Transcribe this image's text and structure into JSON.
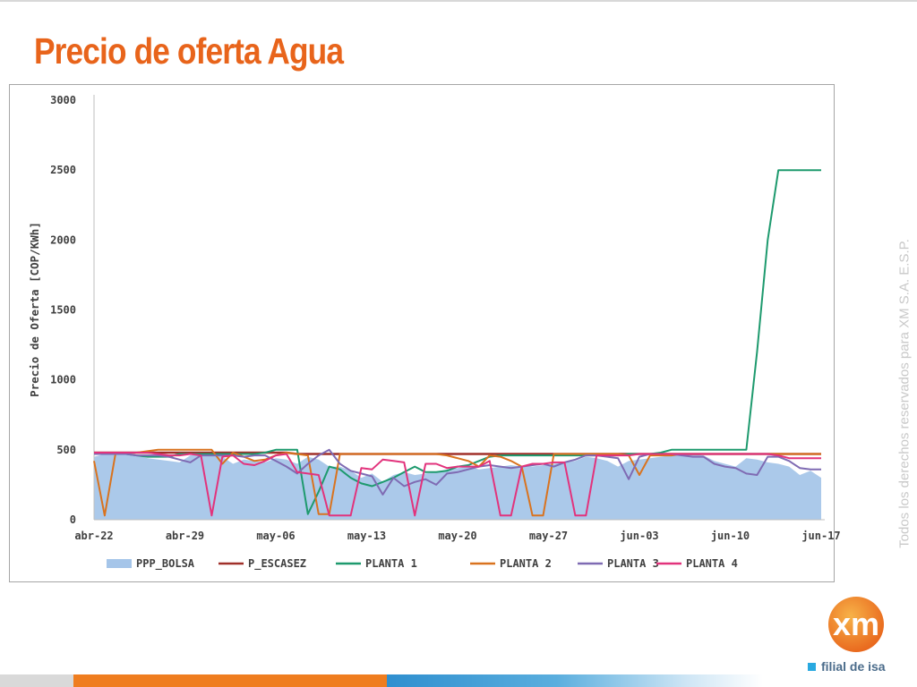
{
  "slide": {
    "title": "Precio de oferta Agua",
    "side_text": "Todos los derechos reservados para XM S.A. E.S.P.",
    "logo_text": "xm",
    "filial_text": "filial de isa"
  },
  "colors": {
    "title": "#e8641b",
    "PPP_BOLSA": "#8fb7e3",
    "P_ESCASEZ": "#a0302a",
    "PLANTA 1": "#1e9a6e",
    "PLANTA 2": "#d9731f",
    "PLANTA 3": "#7f6bb3",
    "PLANTA 4": "#e2337c"
  },
  "chart_data": {
    "type": "line",
    "title": "",
    "xlabel": "",
    "ylabel": "Precio de Oferta [COP/KWh]",
    "ylim": [
      0,
      3000
    ],
    "yticks": [
      0,
      500,
      1000,
      1500,
      2000,
      2500,
      3000
    ],
    "x_tick_labels": [
      "abr-22",
      "abr-29",
      "may-06",
      "may-13",
      "may-20",
      "may-27",
      "jun-03",
      "jun-10",
      "jun-17"
    ],
    "grid": false,
    "legend_position": "bottom",
    "series": [
      {
        "name": "PPP_BOLSA",
        "type": "area",
        "values": [
          450,
          470,
          480,
          470,
          460,
          440,
          430,
          420,
          410,
          460,
          470,
          480,
          450,
          400,
          430,
          420,
          410,
          440,
          430,
          400,
          450,
          430,
          380,
          380,
          350,
          300,
          330,
          270,
          320,
          340,
          320,
          330,
          340,
          360,
          370,
          380,
          360,
          370,
          380,
          390,
          380,
          380,
          390,
          400,
          410,
          420,
          450,
          440,
          420,
          380,
          420,
          430,
          440,
          450,
          460,
          470,
          470,
          460,
          420,
          400,
          380,
          440,
          430,
          410,
          400,
          380,
          320,
          350,
          300
        ]
      },
      {
        "name": "P_ESCASEZ",
        "values": [
          480,
          480,
          480,
          480,
          480,
          480,
          480,
          480,
          480,
          480,
          480,
          480,
          480,
          480,
          480,
          480,
          480,
          480,
          480,
          470,
          470,
          470,
          470,
          470,
          470,
          470,
          470,
          470,
          470,
          470,
          470,
          470,
          470,
          470,
          470,
          470,
          470,
          470,
          470,
          470,
          470,
          470,
          470,
          470,
          470,
          470,
          470,
          470,
          470,
          470,
          470,
          470,
          470,
          470,
          470,
          470,
          470,
          470,
          470,
          470,
          470,
          470,
          470,
          470,
          470,
          470,
          470,
          470,
          470
        ]
      },
      {
        "name": "PLANTA 1",
        "values": [
          470,
          470,
          470,
          470,
          460,
          450,
          450,
          450,
          470,
          470,
          470,
          470,
          470,
          470,
          470,
          470,
          480,
          500,
          500,
          500,
          40,
          200,
          380,
          360,
          300,
          260,
          240,
          270,
          300,
          340,
          380,
          340,
          340,
          350,
          380,
          390,
          420,
          450,
          460,
          460,
          460,
          460,
          460,
          460,
          460,
          460,
          460,
          460,
          460,
          460,
          470,
          470,
          470,
          480,
          500,
          500,
          500,
          500,
          500,
          500,
          500,
          500,
          1200,
          2000,
          2500,
          2500,
          2500,
          2500,
          2500
        ]
      },
      {
        "name": "PLANTA 2",
        "values": [
          420,
          30,
          470,
          480,
          480,
          490,
          500,
          500,
          500,
          500,
          500,
          500,
          400,
          480,
          450,
          420,
          430,
          460,
          480,
          470,
          460,
          40,
          40,
          470,
          470,
          470,
          470,
          470,
          470,
          470,
          470,
          470,
          470,
          460,
          440,
          420,
          380,
          460,
          450,
          420,
          380,
          30,
          30,
          470,
          470,
          470,
          470,
          470,
          470,
          470,
          460,
          320,
          460,
          460,
          460,
          470,
          470,
          470,
          470,
          470,
          470,
          470,
          470,
          470,
          470,
          470,
          470,
          470,
          470
        ]
      },
      {
        "name": "PLANTA 3",
        "values": [
          470,
          470,
          470,
          470,
          460,
          460,
          460,
          450,
          430,
          410,
          460,
          460,
          460,
          460,
          450,
          460,
          460,
          420,
          380,
          330,
          400,
          460,
          500,
          400,
          350,
          330,
          310,
          180,
          300,
          240,
          270,
          290,
          250,
          330,
          340,
          360,
          380,
          390,
          380,
          370,
          380,
          390,
          400,
          380,
          410,
          430,
          460,
          460,
          450,
          440,
          290,
          450,
          470,
          470,
          470,
          460,
          450,
          450,
          400,
          380,
          370,
          330,
          320,
          450,
          450,
          420,
          370,
          360,
          360
        ]
      },
      {
        "name": "PLANTA 4",
        "values": [
          480,
          480,
          480,
          480,
          480,
          480,
          470,
          460,
          460,
          470,
          460,
          30,
          450,
          460,
          400,
          390,
          420,
          460,
          470,
          340,
          330,
          320,
          30,
          30,
          30,
          370,
          360,
          430,
          420,
          410,
          30,
          400,
          400,
          370,
          380,
          380,
          380,
          420,
          30,
          30,
          380,
          400,
          400,
          410,
          410,
          30,
          30,
          460,
          460,
          460,
          460,
          470,
          470,
          470,
          470,
          470,
          470,
          470,
          470,
          470,
          470,
          470,
          470,
          470,
          460,
          440,
          440,
          440,
          440
        ]
      }
    ]
  }
}
